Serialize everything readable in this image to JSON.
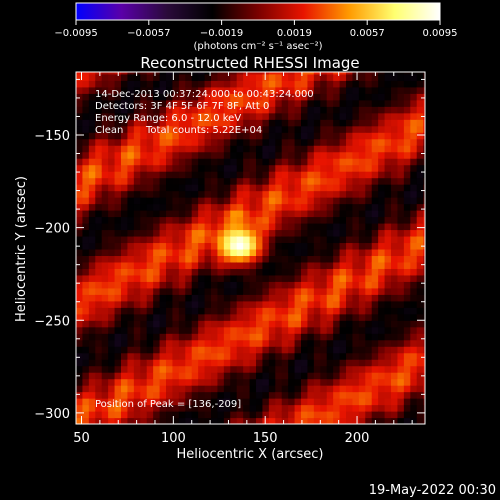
{
  "chart_data": {
    "type": "heatmap",
    "title": "Reconstructed RHESSI Image",
    "xlabel": "Heliocentric X (arcsec)",
    "ylabel": "Heliocentric Y (arcsec)",
    "xlim": [
      47,
      237
    ],
    "ylim": [
      -306,
      -116
    ],
    "xticks": [
      50,
      100,
      150,
      200
    ],
    "xtick_labels": [
      "50",
      "100",
      "150",
      "200"
    ],
    "yticks": [
      -150,
      -200,
      -250,
      -300
    ],
    "ytick_labels": [
      "−150",
      "−200",
      "−250",
      "−300"
    ],
    "colorbar": {
      "range": [
        -0.0095,
        0.0095
      ],
      "ticks": [
        -0.0095,
        -0.0057,
        -0.0019,
        0.0019,
        0.0057,
        0.0095
      ],
      "tick_labels": [
        "−0.0095",
        "−0.0057",
        "−0.0019",
        "0.0019",
        "0.0057",
        "0.0095"
      ],
      "units": "(photons cm⁻² s⁻¹ asec⁻²)",
      "colors": [
        "#0000ff",
        "#5a00a8",
        "#2a0a3a",
        "#000000",
        "#7a0000",
        "#e81400",
        "#ff9a00",
        "#ffff70",
        "#ffffff"
      ]
    },
    "annotations": {
      "time_range": "14-Dec-2013 00:37:24.000 to 00:43:24.000",
      "detectors": "Detectors: 3F 4F 5F 6F 7F 8F, Att 0",
      "energy_range": "Energy Range: 6.0 - 12.0 keV",
      "clean": "Clean",
      "total_counts": "Total counts: 5.22E+04",
      "peak_position": "Position of Peak = [136,-209]"
    },
    "peak": {
      "x": 136,
      "y": -209,
      "value": 0.0095
    },
    "features": [
      {
        "name": "peak-source",
        "x": 136,
        "y": -209,
        "sigma_x": 8,
        "sigma_y": 7,
        "value": 0.0095
      },
      {
        "name": "red-band-top",
        "x": 210,
        "y": -140,
        "value": 0.003
      },
      {
        "name": "red-band-middle",
        "x": 195,
        "y": -225,
        "value": 0.0028
      },
      {
        "name": "red-band-bottom",
        "x": 110,
        "y": -285,
        "value": 0.0028
      },
      {
        "name": "purple-band-upper",
        "x": 120,
        "y": -160,
        "value": -0.0022
      },
      {
        "name": "purple-band-lower",
        "x": 160,
        "y": -255,
        "value": -0.0022
      }
    ]
  },
  "footer": {
    "date": "19-May-2022 00:30"
  }
}
